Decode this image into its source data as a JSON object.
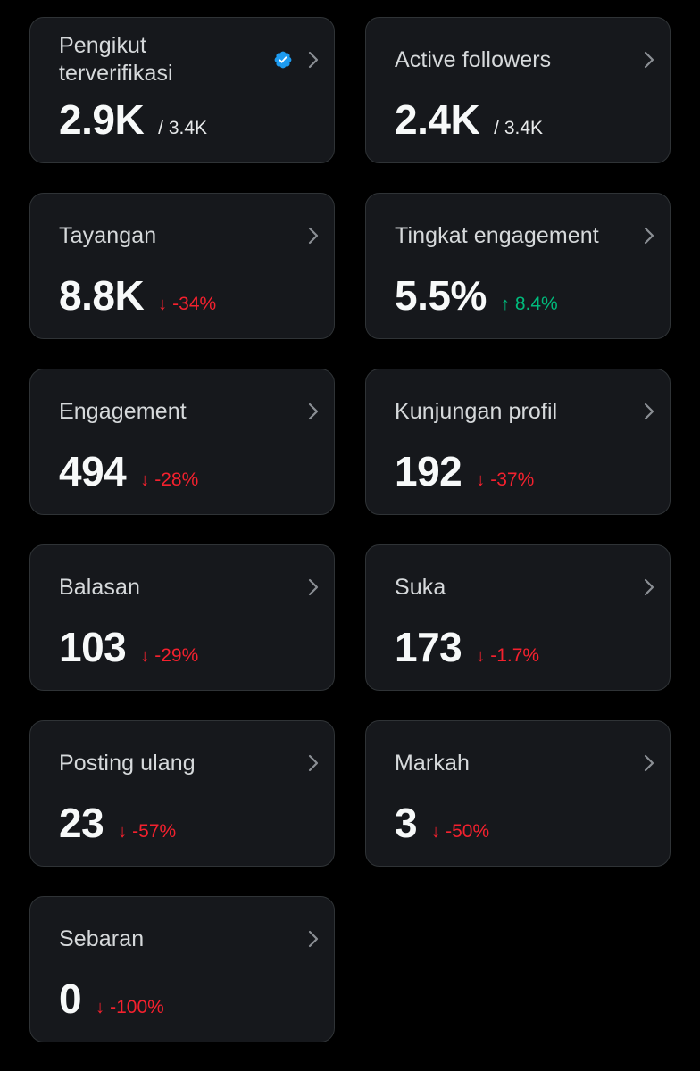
{
  "cards": [
    {
      "id": "verified-followers",
      "title": "Pengikut terverifikasi",
      "value": "2.9K",
      "total": "/ 3.4K",
      "verified": true
    },
    {
      "id": "active-followers",
      "title": "Active followers",
      "value": "2.4K",
      "total": "/ 3.4K"
    },
    {
      "id": "impressions",
      "title": "Tayangan",
      "value": "8.8K",
      "delta": "-34%",
      "direction": "down"
    },
    {
      "id": "engagement-rate",
      "title": "Tingkat engagement",
      "value": "5.5%",
      "delta": "8.4%",
      "direction": "up"
    },
    {
      "id": "engagement",
      "title": "Engagement",
      "value": "494",
      "delta": "-28%",
      "direction": "down"
    },
    {
      "id": "profile-visits",
      "title": "Kunjungan profil",
      "value": "192",
      "delta": "-37%",
      "direction": "down"
    },
    {
      "id": "replies",
      "title": "Balasan",
      "value": "103",
      "delta": "-29%",
      "direction": "down"
    },
    {
      "id": "likes",
      "title": "Suka",
      "value": "173",
      "delta": "-1.7%",
      "direction": "down"
    },
    {
      "id": "reposts",
      "title": "Posting ulang",
      "value": "23",
      "delta": "-57%",
      "direction": "down"
    },
    {
      "id": "bookmarks",
      "title": "Markah",
      "value": "3",
      "delta": "-50%",
      "direction": "down"
    },
    {
      "id": "shares",
      "title": "Sebaran",
      "value": "0",
      "delta": "-100%",
      "direction": "down"
    }
  ],
  "icons": {
    "chevron": "chevron-right-icon",
    "verified": "verified-badge-icon",
    "down": "arrow-down-icon",
    "up": "arrow-up-icon"
  },
  "colors": {
    "card_bg": "#16181c",
    "card_border": "#2f3336",
    "negative": "#f4212e",
    "positive": "#00ba7c",
    "verified": "#1d9bf0"
  }
}
